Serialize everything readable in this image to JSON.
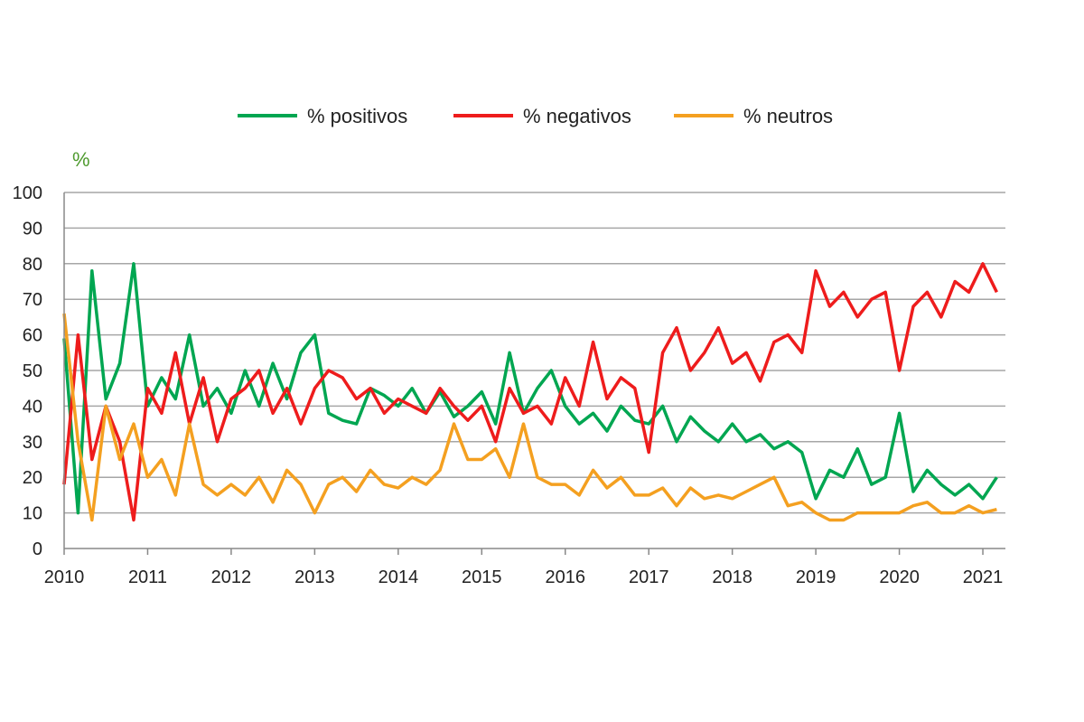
{
  "chart_data": {
    "type": "line",
    "ylabel": "%",
    "ylim": [
      0,
      100
    ],
    "yticks": [
      "0",
      "10",
      "20",
      "30",
      "40",
      "50",
      "60",
      "70",
      "80",
      "90",
      "100"
    ],
    "xticks": [
      "2010",
      "2011",
      "2012",
      "2013",
      "2014",
      "2015",
      "2016",
      "2017",
      "2018",
      "2019",
      "2020",
      "2021"
    ],
    "xlim": [
      "2010-01",
      "2021-04"
    ],
    "grid": "horizontal",
    "legend_position": "top",
    "x": [
      "2010-01",
      "2010-03",
      "2010-05",
      "2010-07",
      "2010-09",
      "2010-11",
      "2011-01",
      "2011-03",
      "2011-05",
      "2011-07",
      "2011-09",
      "2011-11",
      "2012-01",
      "2012-03",
      "2012-05",
      "2012-07",
      "2012-09",
      "2012-11",
      "2013-01",
      "2013-03",
      "2013-05",
      "2013-07",
      "2013-09",
      "2013-11",
      "2014-01",
      "2014-03",
      "2014-05",
      "2014-07",
      "2014-09",
      "2014-11",
      "2015-01",
      "2015-03",
      "2015-05",
      "2015-07",
      "2015-09",
      "2015-11",
      "2016-01",
      "2016-03",
      "2016-05",
      "2016-07",
      "2016-09",
      "2016-11",
      "2017-01",
      "2017-03",
      "2017-05",
      "2017-07",
      "2017-09",
      "2017-11",
      "2018-01",
      "2018-03",
      "2018-05",
      "2018-07",
      "2018-09",
      "2018-11",
      "2019-01",
      "2019-03",
      "2019-05",
      "2019-07",
      "2019-09",
      "2019-11",
      "2020-01",
      "2020-03",
      "2020-05",
      "2020-07",
      "2020-09",
      "2020-11",
      "2021-01",
      "2021-03"
    ],
    "series": [
      {
        "name": "% positivos",
        "color": "#00a651",
        "values": [
          59,
          10,
          78,
          42,
          52,
          80,
          40,
          48,
          42,
          60,
          40,
          45,
          38,
          50,
          40,
          52,
          42,
          55,
          60,
          38,
          36,
          35,
          45,
          43,
          40,
          45,
          38,
          44,
          37,
          40,
          44,
          35,
          55,
          38,
          45,
          50,
          40,
          35,
          38,
          33,
          40,
          36,
          35,
          40,
          30,
          37,
          33,
          30,
          35,
          30,
          32,
          28,
          30,
          27,
          14,
          22,
          20,
          28,
          18,
          20,
          38,
          16,
          22,
          18,
          15,
          18,
          14,
          20
        ]
      },
      {
        "name": "% negativos",
        "color": "#ee1c1c",
        "values": [
          18,
          60,
          25,
          40,
          30,
          8,
          45,
          38,
          55,
          35,
          48,
          30,
          42,
          45,
          50,
          38,
          45,
          35,
          45,
          50,
          48,
          42,
          45,
          38,
          42,
          40,
          38,
          45,
          40,
          36,
          40,
          30,
          45,
          38,
          40,
          35,
          48,
          40,
          58,
          42,
          48,
          45,
          27,
          55,
          62,
          50,
          55,
          62,
          52,
          55,
          47,
          58,
          60,
          55,
          78,
          68,
          72,
          65,
          70,
          72,
          50,
          68,
          72,
          65,
          75,
          72,
          80,
          72
        ]
      },
      {
        "name": "% neutros",
        "color": "#f4a020",
        "values": [
          66,
          30,
          8,
          40,
          25,
          35,
          20,
          25,
          15,
          35,
          18,
          15,
          18,
          15,
          20,
          13,
          22,
          18,
          10,
          18,
          20,
          16,
          22,
          18,
          17,
          20,
          18,
          22,
          35,
          25,
          25,
          28,
          20,
          35,
          20,
          18,
          18,
          15,
          22,
          17,
          20,
          15,
          15,
          17,
          12,
          17,
          14,
          15,
          14,
          16,
          18,
          20,
          12,
          13,
          10,
          8,
          8,
          10,
          10,
          10,
          10,
          12,
          13,
          10,
          10,
          12,
          10,
          11
        ]
      }
    ]
  }
}
